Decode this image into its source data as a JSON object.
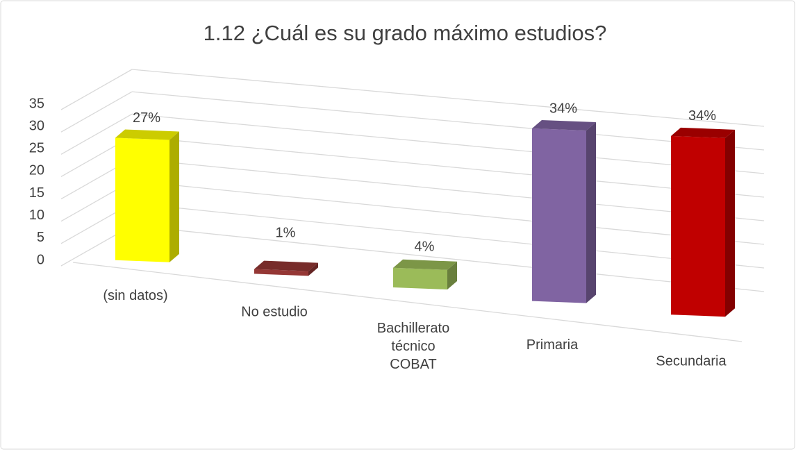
{
  "chart_data": {
    "type": "bar3d",
    "title": "1.12  ¿Cuál es su grado máximo estudios?",
    "categories": [
      "(sin datos)",
      "No estudio",
      "Bachillerato\ntécnico\nCOBAT",
      "Primaria",
      "Secundaria"
    ],
    "values": [
      27,
      1,
      4,
      34,
      34
    ],
    "value_labels": [
      "27%",
      "1%",
      "4%",
      "34%",
      "34%"
    ],
    "colors": [
      "#ffff00",
      "#953735",
      "#9bbb59",
      "#8064a2",
      "#c00000"
    ],
    "ylim": [
      0,
      35
    ],
    "yticks": [
      0,
      5,
      10,
      15,
      20,
      25,
      30,
      35
    ],
    "grid": true
  }
}
